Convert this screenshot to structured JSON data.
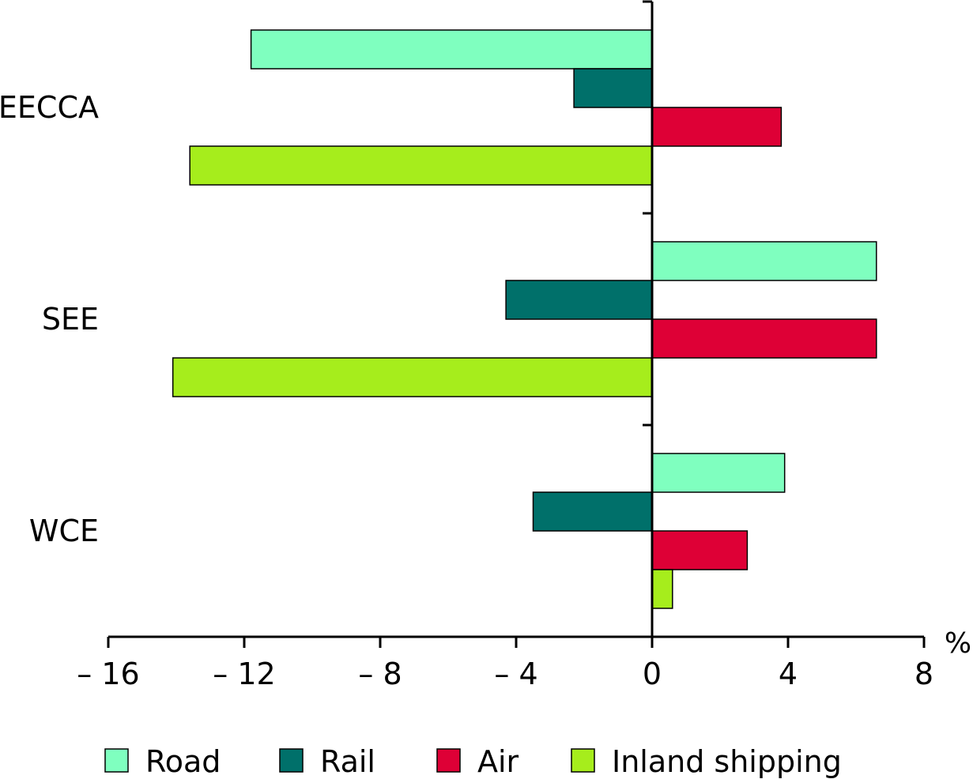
{
  "chart_data": {
    "type": "bar",
    "orientation": "horizontal",
    "categories": [
      "EECCA",
      "SEE",
      "WCE"
    ],
    "series": [
      {
        "name": "Road",
        "color": "#7fffbf",
        "values": [
          -11.8,
          6.6,
          3.9
        ]
      },
      {
        "name": "Rail",
        "color": "#00706a",
        "values": [
          -2.3,
          -4.3,
          -3.5
        ]
      },
      {
        "name": "Air",
        "color": "#de0036",
        "values": [
          3.8,
          6.6,
          2.8
        ]
      },
      {
        "name": "Inland shipping",
        "color": "#a6ed1c",
        "values": [
          -13.6,
          -14.1,
          0.6
        ]
      }
    ],
    "xlim": [
      -16,
      8
    ],
    "xticks": [
      -16,
      -12,
      -8,
      -4,
      0,
      4,
      8
    ],
    "xtick_labels": [
      "– 16",
      "– 12",
      "– 8",
      "– 4",
      "0",
      "4",
      "8"
    ],
    "x_unit": "%",
    "grid": false,
    "legend_position": "bottom"
  }
}
